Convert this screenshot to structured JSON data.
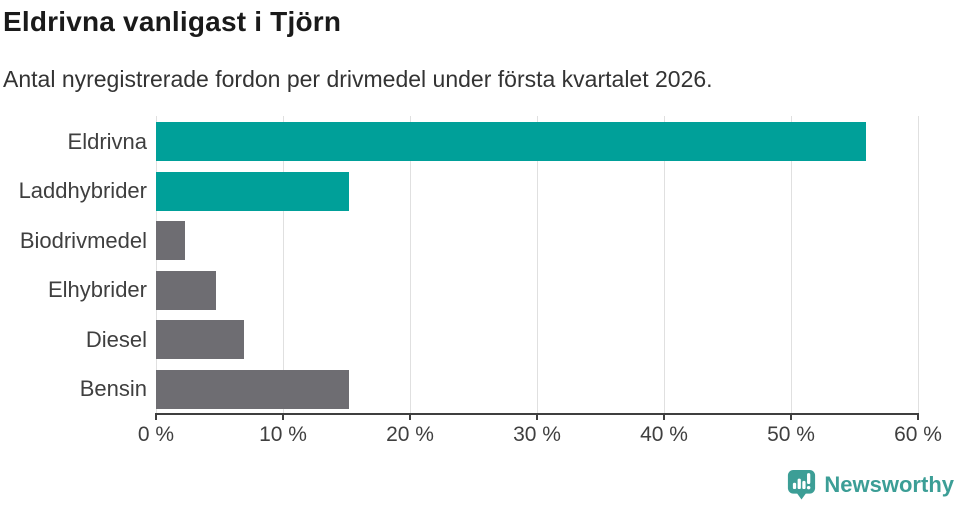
{
  "header": {
    "title": "Eldrivna vanligast i Tjörn",
    "subtitle": "Antal nyregistrerade fordon per drivmedel under första kvartalet 2026."
  },
  "chart_data": {
    "type": "bar",
    "orientation": "horizontal",
    "title": "Eldrivna vanligast i Tjörn",
    "subtitle": "Antal nyregistrerade fordon per drivmedel under första kvartalet 2026.",
    "categories": [
      "Eldrivna",
      "Laddhybrider",
      "Biodrivmedel",
      "Elhybrider",
      "Diesel",
      "Bensin"
    ],
    "values": [
      55.9,
      15.2,
      2.3,
      4.7,
      6.9,
      15.2
    ],
    "unit": "%",
    "bar_colors": [
      "#00a099",
      "#00a099",
      "#6e6d72",
      "#6e6d72",
      "#6e6d72",
      "#6e6d72"
    ],
    "xlabel": "",
    "ylabel": "",
    "xlim": [
      0,
      60
    ],
    "x_ticks": [
      0,
      10,
      20,
      30,
      40,
      50,
      60
    ],
    "x_tick_labels": [
      "0 %",
      "10 %",
      "20 %",
      "30 %",
      "40 %",
      "50 %",
      "60 %"
    ],
    "grid": "vertical-gridlines",
    "legend": "none"
  },
  "colors": {
    "accent_teal": "#00a099",
    "bar_gray": "#6e6d72",
    "gridline": "#e0e0e0",
    "axis": "#3f3f3f",
    "title_text": "#1a1a1a",
    "subtitle_text": "#333333",
    "logo_teal": "#3c9e96"
  },
  "footer": {
    "brand": "Newsworthy",
    "logo_icon": "speech-bubble-bar-chart-exclamation"
  }
}
